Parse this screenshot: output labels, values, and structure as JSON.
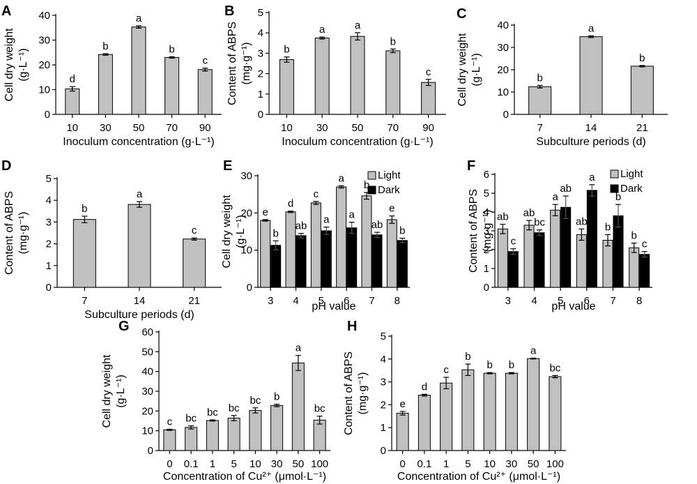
{
  "colors": {
    "light_bar": "#c0c0c0",
    "dark_bar": "#000000",
    "axis": "#000000"
  },
  "chart_data": [
    {
      "panel": "A",
      "type": "bar",
      "categories": [
        "10",
        "30",
        "50",
        "70",
        "90"
      ],
      "series": [
        {
          "values": [
            10.3,
            24.2,
            35.3,
            23.0,
            18.1
          ],
          "errors": [
            0.9,
            0.3,
            0.5,
            0.3,
            0.6
          ],
          "labels": [
            "d",
            "b",
            "a",
            "b",
            "c"
          ]
        }
      ],
      "xlabel": "Inoculum concentration (g·L⁻¹)",
      "ylabel": [
        "Cell dry weight",
        "(g·L⁻¹)"
      ],
      "ylim": [
        0,
        40
      ],
      "yticks": [
        0,
        10,
        20,
        30,
        40
      ],
      "yticks_labels": [
        "0",
        "10",
        "20",
        "30",
        "40"
      ]
    },
    {
      "panel": "B",
      "type": "bar",
      "categories": [
        "10",
        "30",
        "50",
        "70",
        "90"
      ],
      "series": [
        {
          "values": [
            2.69,
            3.75,
            3.83,
            3.12,
            1.57
          ],
          "errors": [
            0.13,
            0.05,
            0.18,
            0.09,
            0.15
          ],
          "labels": [
            "b",
            "a",
            "a",
            "b",
            "c"
          ]
        }
      ],
      "xlabel": "Inoculum concentration (g·L⁻¹)",
      "ylabel": [
        "Content of ABPS",
        "(mg·g⁻¹)"
      ],
      "ylim": [
        0,
        5
      ],
      "yticks": [
        0,
        1,
        2,
        3,
        4,
        5
      ],
      "yticks_labels": [
        "0",
        "1",
        "2",
        "3",
        "4",
        "5"
      ]
    },
    {
      "panel": "C",
      "type": "bar",
      "categories": [
        "7",
        "14",
        "21"
      ],
      "series": [
        {
          "values": [
            12.4,
            34.8,
            21.6
          ],
          "errors": [
            0.6,
            0.4,
            0.3
          ],
          "labels": [
            "b",
            "a",
            "b"
          ]
        }
      ],
      "xlabel": "Subculture periods (d)",
      "ylabel": [
        "Cell dry weight",
        "(g·L⁻¹)"
      ],
      "ylim": [
        0,
        40
      ],
      "yticks": [
        0,
        10,
        20,
        30,
        40
      ],
      "yticks_labels": [
        "0",
        "10",
        "20",
        "30",
        "40"
      ]
    },
    {
      "panel": "D",
      "type": "bar",
      "categories": [
        "7",
        "14",
        "21"
      ],
      "series": [
        {
          "values": [
            3.12,
            3.81,
            2.22
          ],
          "errors": [
            0.15,
            0.13,
            0.05
          ],
          "labels": [
            "b",
            "a",
            "c"
          ]
        }
      ],
      "xlabel": "Subculture periods (d)",
      "ylabel": [
        "Content of ABPS",
        "(mg·g⁻¹)"
      ],
      "ylim": [
        0,
        5
      ],
      "yticks": [
        0,
        1,
        2,
        3,
        4,
        5
      ],
      "yticks_labels": [
        "0",
        "1",
        "2",
        "3",
        "4",
        "5"
      ]
    },
    {
      "panel": "E",
      "type": "bar",
      "categories": [
        "3",
        "4",
        "5",
        "6",
        "7",
        "8"
      ],
      "series": [
        {
          "name": "Light",
          "values": [
            18.0,
            20.3,
            22.7,
            27.0,
            24.6,
            18.2
          ],
          "errors": [
            0.2,
            0.2,
            0.4,
            0.3,
            0.9,
            1.0
          ],
          "labels": [
            "e",
            "d",
            "c",
            "a",
            "b",
            "e"
          ]
        },
        {
          "name": "Dark",
          "values": [
            11.3,
            13.9,
            15.2,
            16.0,
            14.1,
            12.6
          ],
          "errors": [
            1.2,
            0.6,
            1.0,
            1.5,
            0.7,
            0.6
          ],
          "labels": [
            "b",
            "ab",
            "a",
            "a",
            "ab",
            "b"
          ]
        }
      ],
      "xlabel": "pH value",
      "ylabel": [
        "Cell dry weight",
        "(g·L⁻¹)"
      ],
      "ylim": [
        0,
        30
      ],
      "yticks": [
        0,
        10,
        20,
        30
      ],
      "yticks_labels": [
        "0",
        "10",
        "20",
        "30"
      ],
      "legend": "top-right"
    },
    {
      "panel": "F",
      "type": "bar",
      "categories": [
        "3",
        "4",
        "5",
        "6",
        "7",
        "8"
      ],
      "series": [
        {
          "name": "Light",
          "values": [
            3.1,
            3.3,
            4.1,
            2.8,
            2.5,
            2.1
          ],
          "errors": [
            0.25,
            0.25,
            0.3,
            0.3,
            0.3,
            0.25
          ],
          "labels": [
            "ab",
            "ab",
            "a",
            "ab",
            "b",
            "b"
          ]
        },
        {
          "name": "Dark",
          "values": [
            1.9,
            2.9,
            4.25,
            5.15,
            3.8,
            1.75
          ],
          "errors": [
            0.15,
            0.15,
            0.6,
            0.3,
            0.6,
            0.15
          ],
          "labels": [
            "c",
            "bc",
            "ab",
            "a",
            "b",
            "c"
          ]
        }
      ],
      "xlabel": "pH value",
      "ylabel": [
        "Content of ABPS",
        "(mg·g⁻¹)"
      ],
      "ylim": [
        0,
        6
      ],
      "yticks": [
        0,
        1,
        2,
        3,
        4,
        5,
        6
      ],
      "yticks_labels": [
        "0",
        "1",
        "2",
        "3",
        "4",
        "5",
        "6"
      ],
      "legend": "top-right"
    },
    {
      "panel": "G",
      "type": "bar",
      "categories": [
        "0",
        "0.1",
        "1",
        "5",
        "10",
        "30",
        "50",
        "100"
      ],
      "series": [
        {
          "values": [
            10.5,
            11.7,
            15.2,
            16.4,
            20.3,
            22.8,
            44.3,
            15.4
          ],
          "errors": [
            0.3,
            0.8,
            0.3,
            1.3,
            1.3,
            0.6,
            3.8,
            2.0
          ],
          "labels": [
            "c",
            "bc",
            "bc",
            "bc",
            "bc",
            "b",
            "a",
            "bc"
          ]
        }
      ],
      "xlabel": "Concentration of Cu²⁺ (μmol·L⁻¹)",
      "ylabel": [
        "Cell dry weight",
        "(g·L⁻¹)"
      ],
      "ylim": [
        0,
        60
      ],
      "yticks": [
        0,
        10,
        20,
        30,
        40,
        50,
        60
      ],
      "yticks_labels": [
        "0",
        "10",
        "20",
        "30",
        "40",
        "50",
        "60"
      ]
    },
    {
      "panel": "H",
      "type": "bar",
      "categories": [
        "0",
        "0.1",
        "1",
        "5",
        "10",
        "30",
        "50",
        "100"
      ],
      "series": [
        {
          "values": [
            1.63,
            2.42,
            2.95,
            3.53,
            3.38,
            3.38,
            4.02,
            3.23
          ],
          "errors": [
            0.08,
            0.04,
            0.25,
            0.25,
            0.03,
            0.03,
            0.02,
            0.05
          ],
          "labels": [
            "e",
            "d",
            "c",
            "b",
            "b",
            "b",
            "a",
            "bc"
          ]
        }
      ],
      "xlabel": "Concentration of Cu²⁺ (μmol·L⁻¹)",
      "ylabel": [
        "Content of ABPS",
        "(mg·g⁻¹)"
      ],
      "ylim": [
        0,
        5
      ],
      "yticks": [
        0,
        1,
        2,
        3,
        4,
        5
      ],
      "yticks_labels": [
        "0",
        "1",
        "2",
        "3",
        "4",
        "5"
      ]
    }
  ]
}
